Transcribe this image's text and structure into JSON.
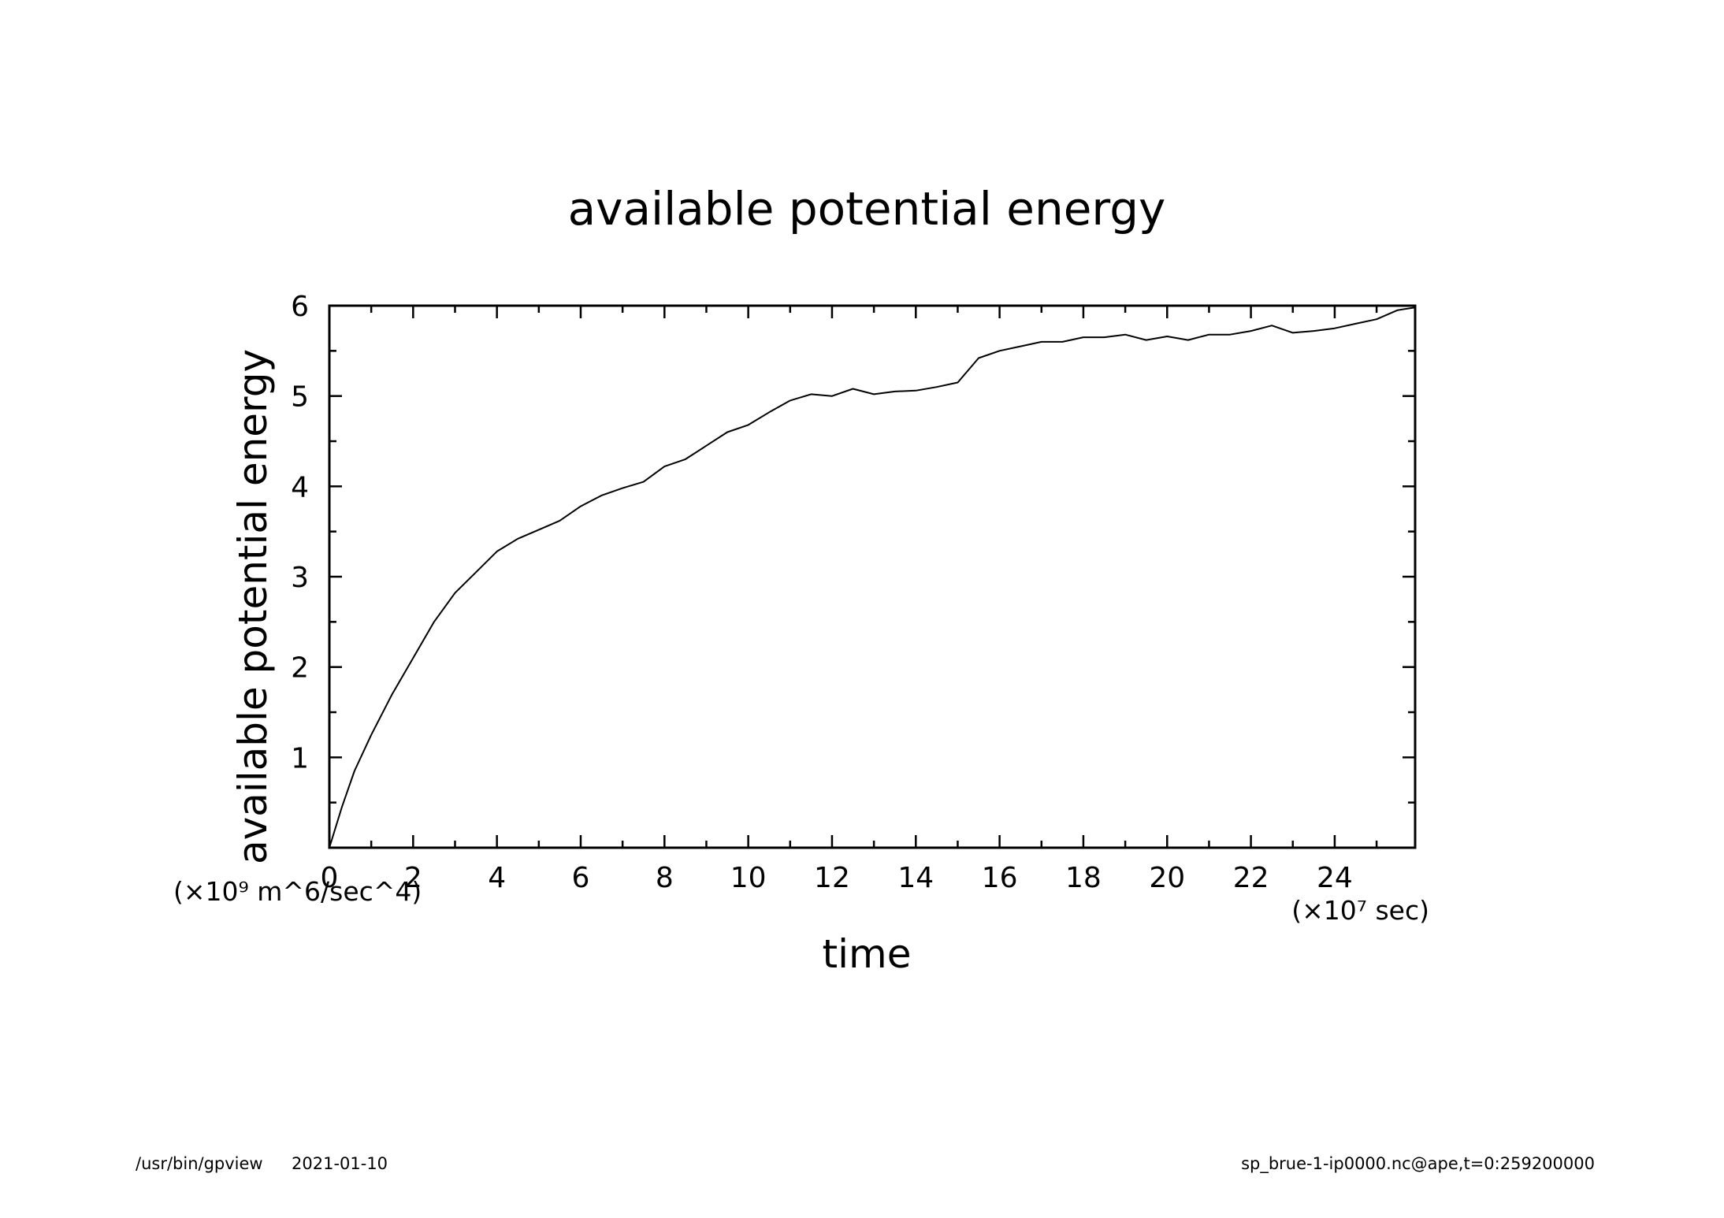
{
  "footer": {
    "program": "/usr/bin/gpview",
    "date": "2021-01-10",
    "source": "sp_brue-1-ip0000.nc@ape,t=0:259200000"
  },
  "colors": {
    "line": "#000000",
    "axis": "#000000",
    "background": "#ffffff"
  },
  "chart_data": {
    "type": "line",
    "title": "available potential energy",
    "xlabel": "time",
    "ylabel": "available potential energy",
    "x_unit_label": "(×10⁷ sec)",
    "y_unit_label": "(×10⁹ m^6/sec^4)",
    "xlim": [
      0,
      25.92
    ],
    "ylim": [
      0,
      6
    ],
    "x_ticks": [
      "0",
      "2",
      "4",
      "6",
      "8",
      "10",
      "12",
      "14",
      "16",
      "18",
      "20",
      "22",
      "24"
    ],
    "y_ticks": [
      "1",
      "2",
      "3",
      "4",
      "5",
      "6"
    ],
    "grid": false,
    "series": [
      {
        "x": [
          0,
          0.3,
          0.6,
          1,
          1.5,
          2,
          2.5,
          3,
          3.5,
          4,
          4.5,
          5,
          5.5,
          6,
          6.5,
          7,
          7.5,
          8,
          8.5,
          9,
          9.5,
          10,
          10.5,
          11,
          11.5,
          12,
          12.5,
          13,
          13.5,
          14,
          14.5,
          15,
          15.5,
          16,
          16.5,
          17,
          17.5,
          18,
          18.5,
          19,
          19.5,
          20,
          20.5,
          21,
          21.5,
          22,
          22.5,
          23,
          23.5,
          24,
          24.5,
          25,
          25.5,
          25.92
        ],
        "y": [
          0,
          0.45,
          0.85,
          1.25,
          1.7,
          2.1,
          2.5,
          2.82,
          3.05,
          3.28,
          3.42,
          3.52,
          3.62,
          3.78,
          3.9,
          3.98,
          4.05,
          4.22,
          4.3,
          4.45,
          4.6,
          4.68,
          4.82,
          4.95,
          5.02,
          5.0,
          5.08,
          5.02,
          5.05,
          5.06,
          5.1,
          5.15,
          5.42,
          5.5,
          5.55,
          5.6,
          5.6,
          5.65,
          5.65,
          5.68,
          5.62,
          5.66,
          5.62,
          5.68,
          5.68,
          5.72,
          5.78,
          5.7,
          5.72,
          5.75,
          5.8,
          5.85,
          5.95,
          5.98
        ]
      }
    ]
  }
}
